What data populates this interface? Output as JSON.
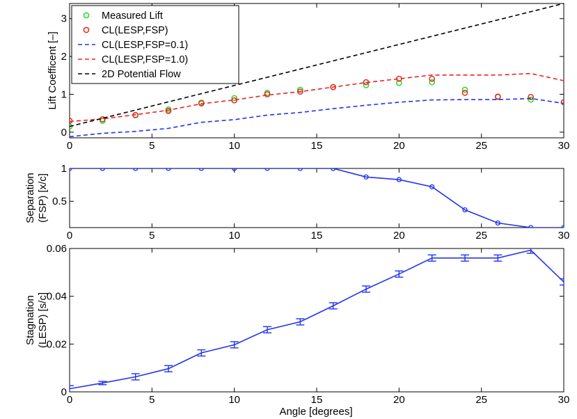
{
  "xlabel": "Angle [degrees]",
  "chart_data": [
    {
      "type": "line",
      "ylabel": "Lift Coefficent [–]",
      "xlim": [
        0,
        30
      ],
      "ylim": [
        -0.15,
        3.4
      ],
      "xticks": [
        0,
        5,
        10,
        15,
        20,
        25,
        30
      ],
      "yticks": [
        0,
        1,
        2,
        3
      ],
      "legend_position": "top-left",
      "series": [
        {
          "name": "Measured Lift",
          "style": "markers",
          "color": "#22dd22",
          "x": [
            0,
            2,
            4,
            6,
            8,
            10,
            12,
            14,
            16,
            18,
            20,
            22,
            24,
            26,
            28,
            30
          ],
          "y": [
            0.15,
            0.3,
            0.45,
            0.6,
            0.78,
            0.9,
            1.04,
            1.12,
            1.19,
            1.24,
            1.3,
            1.32,
            1.12,
            0.93,
            0.86,
            0.79
          ]
        },
        {
          "name": "CL(LESP,FSP)",
          "style": "markers",
          "color": "#ee2222",
          "x": [
            0,
            2,
            4,
            6,
            8,
            10,
            12,
            14,
            16,
            18,
            20,
            22,
            24,
            26,
            28,
            30
          ],
          "y": [
            0.3,
            0.34,
            0.45,
            0.56,
            0.76,
            0.84,
            1.0,
            1.07,
            1.19,
            1.32,
            1.41,
            1.41,
            1.04,
            0.94,
            0.93,
            0.79
          ]
        },
        {
          "name": "CL(LESP,FSP=0.1)",
          "style": "dashed",
          "color": "#2233ee",
          "x": [
            0,
            2,
            4,
            6,
            8,
            10,
            12,
            14,
            16,
            18,
            20,
            22,
            24,
            26,
            28,
            30
          ],
          "y": [
            -0.12,
            -0.03,
            0.02,
            0.1,
            0.26,
            0.33,
            0.45,
            0.52,
            0.62,
            0.71,
            0.79,
            0.85,
            0.86,
            0.86,
            0.89,
            0.76
          ]
        },
        {
          "name": "CL(LESP,FSP=1.0)",
          "style": "dashed",
          "color": "#ee2222",
          "x": [
            0,
            2,
            4,
            6,
            8,
            10,
            12,
            14,
            16,
            18,
            20,
            22,
            24,
            26,
            28,
            30
          ],
          "y": [
            0.28,
            0.35,
            0.46,
            0.58,
            0.75,
            0.85,
            0.98,
            1.07,
            1.19,
            1.31,
            1.41,
            1.51,
            1.51,
            1.51,
            1.55,
            1.36
          ]
        },
        {
          "name": "2D Potential Flow",
          "style": "dashed",
          "color": "#000000",
          "x": [
            0,
            30
          ],
          "y": [
            0.15,
            3.4
          ]
        }
      ]
    },
    {
      "type": "line",
      "ylabel": [
        "Separation",
        "(FSP) [x/c]"
      ],
      "xlim": [
        0,
        30
      ],
      "ylim": [
        0.1,
        1.0
      ],
      "xticks": [
        0,
        5,
        10,
        15,
        20,
        25,
        30
      ],
      "yticks": [
        0.5,
        1
      ],
      "series": [
        {
          "color": "#2233ee",
          "x": [
            0,
            2,
            4,
            6,
            8,
            10,
            12,
            14,
            16,
            18,
            20,
            22,
            24,
            26,
            28,
            30
          ],
          "y": [
            1.0,
            1.0,
            1.0,
            1.0,
            1.0,
            1.0,
            1.0,
            1.0,
            1.0,
            0.87,
            0.83,
            0.72,
            0.37,
            0.17,
            0.1,
            0.1
          ]
        }
      ]
    },
    {
      "type": "line",
      "ylabel": [
        "Stagnation",
        "(LESP) [s/c]"
      ],
      "xlim": [
        0,
        30
      ],
      "ylim": [
        0,
        0.06
      ],
      "xticks": [
        0,
        5,
        10,
        15,
        20,
        25,
        30
      ],
      "yticks": [
        0,
        0.02,
        0.04,
        0.06
      ],
      "series": [
        {
          "color": "#2233ee",
          "x": [
            0,
            2,
            4,
            6,
            8,
            10,
            12,
            14,
            16,
            18,
            20,
            22,
            24,
            26,
            28,
            30
          ],
          "y": [
            0.0013,
            0.0037,
            0.0063,
            0.0097,
            0.0163,
            0.0197,
            0.026,
            0.0293,
            0.036,
            0.043,
            0.0493,
            0.056,
            0.056,
            0.056,
            0.0593,
            0.046
          ],
          "err": [
            0.0013,
            0.0007,
            0.0013,
            0.0013,
            0.0013,
            0.0013,
            0.0013,
            0.0013,
            0.0013,
            0.0013,
            0.0013,
            0.0013,
            0.0013,
            0.0013,
            0.0013,
            0.0013
          ]
        }
      ]
    }
  ]
}
